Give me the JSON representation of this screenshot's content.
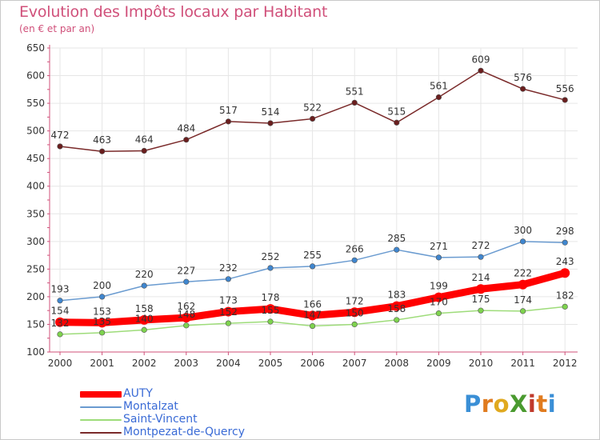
{
  "header": {
    "title": "Evolution des Impôts locaux par Habitant",
    "subtitle": "(en € et par an)"
  },
  "logo": {
    "text": "ProXiti",
    "letters": [
      {
        "ch": "P",
        "color": "#3a8fd6"
      },
      {
        "ch": "r",
        "color": "#e07b1f"
      },
      {
        "ch": "o",
        "color": "#e0a91f"
      },
      {
        "ch": "X",
        "color": "#4a9a2f"
      },
      {
        "ch": "i",
        "color": "#c0392b"
      },
      {
        "ch": "t",
        "color": "#e07b1f"
      },
      {
        "ch": "i",
        "color": "#3a8fd6"
      }
    ]
  },
  "colors": {
    "title": "#d0507a",
    "axis": "#d0507a",
    "grid": "#e6e6e6",
    "tick_label": "#333333",
    "legend_text": "#3a6bd6"
  },
  "chart_data": {
    "type": "line",
    "title": "Evolution des Impôts locaux par Habitant",
    "subtitle": "(en € et par an)",
    "xlabel": "",
    "ylabel": "",
    "x": [
      "2000",
      "2001",
      "2002",
      "2003",
      "2004",
      "2005",
      "2006",
      "2007",
      "2008",
      "2009",
      "2010",
      "2011",
      "2012"
    ],
    "ylim": [
      100,
      650
    ],
    "yticks": [
      100,
      150,
      200,
      250,
      300,
      350,
      400,
      450,
      500,
      550,
      600,
      650
    ],
    "grid": true,
    "legend_position": "bottom-left",
    "series": [
      {
        "name": "AUTY",
        "color": "#ff0000",
        "line_color": "#ff0000",
        "marker_color": "#ff0000",
        "thick": true,
        "values": [
          154,
          153,
          158,
          162,
          173,
          178,
          166,
          172,
          183,
          199,
          214,
          222,
          243
        ]
      },
      {
        "name": "Montalzat",
        "color": "#6a9bd0",
        "line_color": "#6a9bd0",
        "marker_color": "#3f86cf",
        "thick": false,
        "values": [
          193,
          200,
          220,
          227,
          232,
          252,
          255,
          266,
          285,
          271,
          272,
          300,
          298
        ]
      },
      {
        "name": "Saint-Vincent",
        "color": "#9edc7a",
        "line_color": "#9edc7a",
        "marker_color": "#7ed34e",
        "thick": false,
        "values": [
          132,
          135,
          140,
          148,
          152,
          155,
          147,
          150,
          158,
          170,
          175,
          174,
          182
        ]
      },
      {
        "name": "Montpezat-de-Quercy",
        "color": "#7a2a2a",
        "line_color": "#7a2a2a",
        "marker_color": "#6a1e1e",
        "thick": false,
        "values": [
          472,
          463,
          464,
          484,
          517,
          514,
          522,
          551,
          515,
          561,
          609,
          576,
          556
        ]
      }
    ]
  }
}
